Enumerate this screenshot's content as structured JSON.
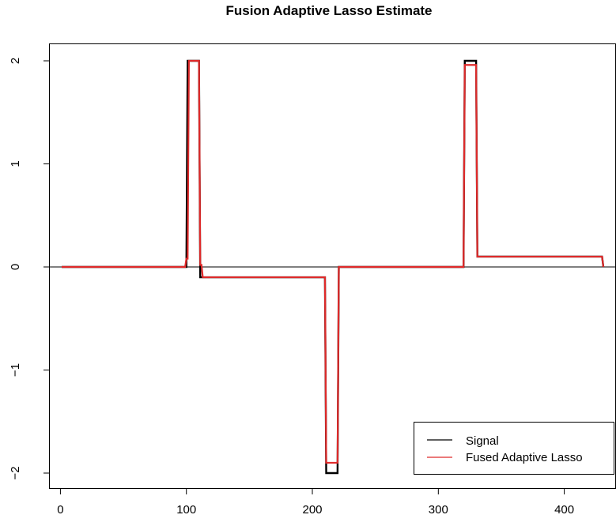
{
  "chart_data": {
    "type": "line",
    "title": "Fusion Adaptive Lasso Estimate",
    "xlabel": "",
    "ylabel": "",
    "xlim": [
      1,
      431
    ],
    "ylim": [
      -2.1,
      2.1
    ],
    "xticks": [
      0,
      100,
      200,
      300,
      400
    ],
    "yticks": [
      -2,
      -1,
      0,
      1,
      2
    ],
    "ytick_labels": [
      "−2",
      "−1",
      "0",
      "1",
      "2"
    ],
    "grid": false,
    "reference_line_y": 0,
    "legend": {
      "position": "bottom-right"
    },
    "series": [
      {
        "name": "Signal",
        "color": "#000000",
        "x": [
          1,
          100,
          101,
          110,
          111,
          210,
          211,
          220,
          221,
          320,
          321,
          330,
          331,
          430,
          431
        ],
        "y": [
          0,
          0,
          2,
          2,
          -0.1,
          -0.1,
          -2,
          -2,
          0,
          0,
          2,
          2,
          0.1,
          0.1,
          0
        ]
      },
      {
        "name": "Fused Adaptive Lasso",
        "color": "#df2a2a",
        "x": [
          1,
          99,
          100,
          101,
          102,
          110,
          111,
          112,
          113,
          210,
          211,
          212,
          219,
          220,
          221,
          320,
          321,
          322,
          329,
          330,
          331,
          430,
          431
        ],
        "y": [
          0,
          0,
          0.08,
          0.08,
          2,
          2,
          0.02,
          0.02,
          -0.1,
          -0.1,
          -1.9,
          -1.9,
          -1.9,
          -1.9,
          0,
          0,
          1.96,
          1.96,
          1.96,
          1.96,
          0.1,
          0.1,
          0
        ]
      }
    ]
  }
}
